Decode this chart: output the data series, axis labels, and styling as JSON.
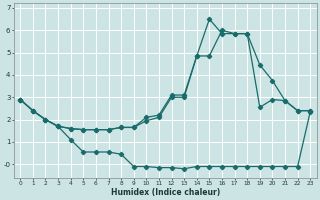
{
  "bg_color": "#cde4e4",
  "grid_color": "#ffffff",
  "line_color": "#1a6b6b",
  "xlabel": "Humidex (Indice chaleur)",
  "xlim": [
    -0.5,
    23.5
  ],
  "ylim": [
    -0.6,
    7.2
  ],
  "xtick_labels": [
    "0",
    "1",
    "2",
    "3",
    "4",
    "5",
    "6",
    "7",
    "8",
    "9",
    "10",
    "11",
    "12",
    "13",
    "14",
    "15",
    "16",
    "17",
    "18",
    "19",
    "20",
    "21",
    "22",
    "23"
  ],
  "ytick_vals": [
    0,
    1,
    2,
    3,
    4,
    5,
    6,
    7
  ],
  "ytick_labels": [
    "-0",
    "1",
    "2",
    "3",
    "4",
    "5",
    "6",
    "7"
  ],
  "line_top_x": [
    0,
    1,
    2,
    3,
    4,
    5,
    6,
    7,
    8,
    9,
    10,
    11,
    12,
    13,
    14,
    15,
    16,
    17,
    18,
    19,
    20,
    21,
    22,
    23
  ],
  "line_top_y": [
    2.9,
    2.4,
    2.0,
    1.7,
    1.6,
    1.55,
    1.55,
    1.55,
    1.65,
    1.65,
    2.1,
    2.2,
    3.1,
    3.1,
    4.85,
    6.5,
    5.85,
    5.85,
    5.85,
    4.45,
    3.75,
    2.85,
    2.4,
    2.4
  ],
  "line_mid_x": [
    0,
    1,
    2,
    3,
    4,
    5,
    6,
    7,
    8,
    9,
    10,
    11,
    12,
    13,
    14,
    15,
    16,
    17,
    18,
    19,
    20,
    21,
    22,
    23
  ],
  "line_mid_y": [
    2.9,
    2.4,
    2.0,
    1.7,
    1.6,
    1.55,
    1.55,
    1.55,
    1.65,
    1.65,
    1.95,
    2.1,
    3.0,
    3.0,
    4.85,
    4.85,
    6.0,
    5.85,
    5.85,
    2.55,
    2.9,
    2.85,
    2.4,
    2.4
  ],
  "line_bot_x": [
    0,
    1,
    2,
    3,
    4,
    5,
    6,
    7,
    8,
    9,
    10,
    11,
    12,
    13,
    14,
    15,
    16,
    17,
    18,
    19,
    20,
    21,
    22,
    23
  ],
  "line_bot_y": [
    2.9,
    2.4,
    2.0,
    1.7,
    1.1,
    0.55,
    0.55,
    0.55,
    0.45,
    -0.1,
    -0.1,
    -0.15,
    -0.15,
    -0.2,
    -0.1,
    -0.1,
    -0.1,
    -0.1,
    -0.1,
    -0.1,
    -0.1,
    -0.1,
    -0.1,
    2.35
  ],
  "marker": "D",
  "markersize": 2.2,
  "linewidth": 0.9,
  "xlabel_fontsize": 5.5,
  "tick_fontsize_x": 4.2,
  "tick_fontsize_y": 5.0
}
